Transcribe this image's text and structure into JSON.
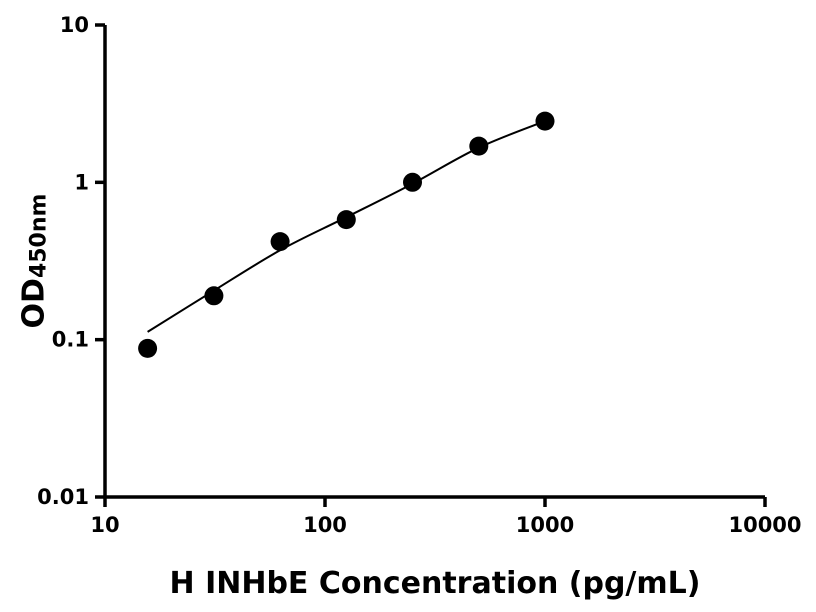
{
  "chart_data": {
    "type": "scatter",
    "xlabel": "H INHbE Concentration (pg/mL)",
    "ylabel_main": "OD",
    "ylabel_sub": "450nm",
    "x_scale": "log",
    "y_scale": "log",
    "xlim": [
      10,
      10000
    ],
    "ylim": [
      0.01,
      10
    ],
    "grid": false,
    "legend": "none",
    "background_color": "#ffffff",
    "axis_color": "#000000",
    "marker_color": "#000000",
    "line_color": "#000000",
    "x_ticks": [
      {
        "value": 10,
        "label": "10"
      },
      {
        "value": 100,
        "label": "100"
      },
      {
        "value": 1000,
        "label": "1000"
      },
      {
        "value": 10000,
        "label": "10000"
      }
    ],
    "y_ticks": [
      {
        "value": 0.01,
        "label": "0.01"
      },
      {
        "value": 0.1,
        "label": "0.1"
      },
      {
        "value": 1,
        "label": "1"
      },
      {
        "value": 10,
        "label": "10"
      }
    ],
    "series": [
      {
        "name": "standard-curve-points",
        "points": [
          {
            "x": 15.625,
            "y": 0.088
          },
          {
            "x": 31.25,
            "y": 0.19
          },
          {
            "x": 62.5,
            "y": 0.42
          },
          {
            "x": 125,
            "y": 0.58
          },
          {
            "x": 250,
            "y": 1.0
          },
          {
            "x": 500,
            "y": 1.7
          },
          {
            "x": 1000,
            "y": 2.45
          }
        ]
      }
    ],
    "fit_line": [
      [
        15.625,
        0.112
      ],
      [
        31.25,
        0.205
      ],
      [
        62.5,
        0.37
      ],
      [
        125,
        0.6
      ],
      [
        250,
        0.98
      ],
      [
        500,
        1.66
      ],
      [
        1000,
        2.45
      ]
    ]
  }
}
